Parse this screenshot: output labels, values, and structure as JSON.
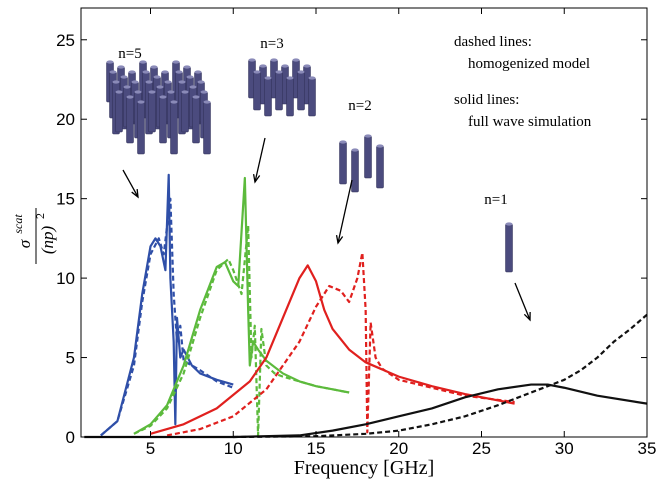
{
  "chart_data": {
    "type": "line",
    "x_label": "Frequency [GHz]",
    "y_label": {
      "symbol": "σ",
      "superscript": "scat",
      "denominator": "(np)",
      "power": "2"
    },
    "xlim": [
      0.8,
      35
    ],
    "ylim": [
      0,
      27
    ],
    "xticks": [
      5,
      10,
      15,
      20,
      25,
      30,
      35
    ],
    "yticks": [
      0,
      5,
      10,
      15,
      20,
      25
    ],
    "annotations": [
      "n=5",
      "n=3",
      "n=2",
      "n=1",
      "dashed lines:",
      "homogenized model",
      "solid lines:",
      "full wave simulation"
    ],
    "series": [
      {
        "color": "#2f4fa8",
        "dashed": false,
        "x": [
          2,
          3,
          4,
          4.5,
          5,
          5.3,
          5.6,
          5.9,
          6.1,
          6.2,
          6.4,
          6.5,
          6.6,
          6.8,
          7,
          7.5,
          8,
          9,
          10
        ],
        "values": [
          0.1,
          1,
          5,
          9,
          12,
          12.5,
          12,
          10.5,
          16.5,
          10,
          6,
          0.8,
          7.5,
          5,
          5.5,
          4.5,
          4,
          3.6,
          3.3
        ]
      },
      {
        "color": "#2f4fa8",
        "dashed": true,
        "x": [
          2,
          3,
          4,
          4.5,
          5,
          5.5,
          5.8,
          6.2,
          6.4,
          6.6,
          6.8,
          7,
          7.5,
          8,
          9,
          10
        ],
        "values": [
          0.1,
          1,
          4.5,
          8.5,
          11.5,
          12.5,
          11.5,
          15,
          9,
          6,
          7,
          4.8,
          4.5,
          4.2,
          3.5,
          3.1
        ]
      },
      {
        "color": "#5cba3c",
        "dashed": false,
        "x": [
          4,
          5,
          6,
          7,
          8,
          9,
          9.5,
          10,
          10.3,
          10.7,
          10.9,
          11,
          11.2,
          11.5,
          12,
          13,
          14,
          15,
          16,
          17
        ],
        "values": [
          0.2,
          0.8,
          2,
          4.5,
          8,
          10.7,
          11,
          9.8,
          9.5,
          16.3,
          8,
          4.5,
          6,
          5.5,
          4.8,
          4,
          3.5,
          3.2,
          3,
          2.8
        ]
      },
      {
        "color": "#5cba3c",
        "dashed": true,
        "x": [
          4,
          5,
          6,
          7,
          8,
          9,
          9.7,
          10,
          10.5,
          10.9,
          11.1,
          11.3,
          11.5,
          11.7,
          12,
          12.5,
          13,
          14,
          15,
          16,
          17
        ],
        "values": [
          0.2,
          0.7,
          1.8,
          4,
          7.5,
          10.5,
          11.2,
          10.5,
          9,
          13.3,
          5,
          7,
          0.1,
          6.8,
          4.5,
          4,
          3.8,
          3.5,
          3.2,
          3,
          2.8
        ]
      },
      {
        "color": "#e0201e",
        "dashed": false,
        "x": [
          5,
          7,
          9,
          11,
          12,
          13,
          14,
          14.5,
          15,
          15.5,
          16,
          17,
          18,
          20,
          22,
          24,
          27
        ],
        "values": [
          0.2,
          0.8,
          1.8,
          3.5,
          5,
          7.5,
          10,
          10.8,
          9.8,
          8,
          6.8,
          5.5,
          4.7,
          3.8,
          3.2,
          2.7,
          2.1
        ]
      },
      {
        "color": "#e0201e",
        "dashed": true,
        "x": [
          6,
          8,
          10,
          12,
          13,
          14,
          15,
          15.8,
          16.5,
          17,
          17.5,
          17.8,
          18,
          18.1,
          18.3,
          18.6,
          19,
          20,
          22,
          24,
          27
        ],
        "values": [
          0.1,
          0.5,
          1.3,
          3,
          4.5,
          6,
          8.2,
          9.5,
          9.2,
          8.5,
          10,
          11.6,
          8,
          0.3,
          7.2,
          5,
          4.3,
          3.6,
          3.1,
          2.6,
          2.2
        ]
      },
      {
        "color": "#111111",
        "dashed": false,
        "x": [
          1,
          10,
          14,
          16,
          18,
          20,
          22,
          24,
          26,
          28,
          29,
          30,
          32,
          35
        ],
        "values": [
          0,
          0,
          0.1,
          0.4,
          0.8,
          1.3,
          1.8,
          2.5,
          3,
          3.3,
          3.3,
          3.1,
          2.6,
          2.1
        ]
      },
      {
        "color": "#111111",
        "dashed": true,
        "x": [
          10,
          15,
          18,
          20,
          22,
          24,
          26,
          28,
          30,
          31,
          32,
          33,
          34,
          35
        ],
        "values": [
          0,
          0.05,
          0.2,
          0.4,
          0.8,
          1.3,
          2,
          2.8,
          3.6,
          4.2,
          5,
          6,
          6.8,
          7.7
        ]
      }
    ]
  }
}
